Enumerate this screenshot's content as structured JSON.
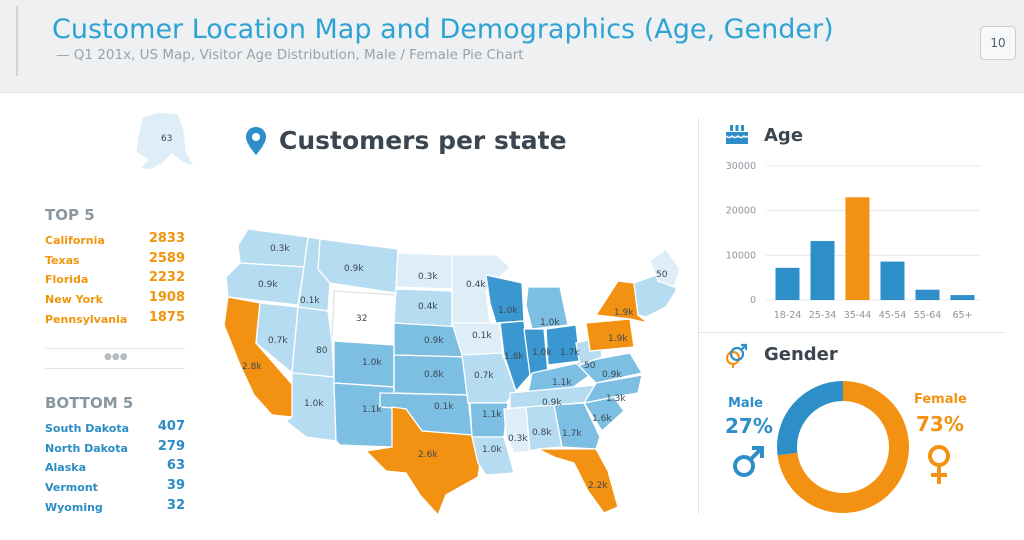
{
  "header": {
    "title": "Customer Location Map and Demographics (Age, Gender)",
    "subtitle": "— Q1 201x, US Map, Visitor Age Distribution, Male / Female Pie Chart",
    "page_number": "10"
  },
  "map": {
    "title": "Customers per state",
    "icon": "map-pin-icon",
    "alaska_value": "63",
    "state_labels": [
      "0.3k",
      "0.9k",
      "0.9k",
      "0.1k",
      "0.3k",
      "0.4k",
      "50",
      "0.4k",
      "32",
      "1.0k",
      "1.0k",
      "1.9k",
      "0.7k",
      "80",
      "1.0k",
      "0.9k",
      "0.1k",
      "1.8k",
      "1.0k",
      "1.7k",
      "1.9k",
      "2.8k",
      "0.8k",
      "0.7k",
      "50",
      "0.9k",
      "1.1k",
      "1.0k",
      "1.1k",
      "0.1k",
      "0.9k",
      "1.3k",
      "1.1k",
      "1.6k",
      "0.8k",
      "1.7k",
      "1.0k",
      "0.3k",
      "2.6k",
      "2.2k"
    ],
    "colors": {
      "top": "#f39212",
      "dark": "#3a97cf",
      "mid": "#7dbfe3",
      "light": "#b5dcf1",
      "pale": "#ddeef8"
    }
  },
  "top5": {
    "heading": "TOP 5",
    "items": [
      {
        "name": "California",
        "value": "2833"
      },
      {
        "name": "Texas",
        "value": "2589"
      },
      {
        "name": "Florida",
        "value": "2232"
      },
      {
        "name": "New York",
        "value": "1908"
      },
      {
        "name": "Pennsylvania",
        "value": "1875"
      }
    ]
  },
  "bottom5": {
    "heading": "BOTTOM 5",
    "items": [
      {
        "name": "South Dakota",
        "value": "407"
      },
      {
        "name": "North Dakota",
        "value": "279"
      },
      {
        "name": "Alaska",
        "value": "63"
      },
      {
        "name": "Vermont",
        "value": "39"
      },
      {
        "name": "Wyoming",
        "value": "32"
      }
    ]
  },
  "age": {
    "title": "Age",
    "icon": "birthday-cake-icon"
  },
  "gender": {
    "title": "Gender",
    "icon": "gender-icon",
    "male_label": "Male",
    "male_pct": "27%",
    "female_label": "Female",
    "female_pct": "73%"
  },
  "chart_data": [
    {
      "type": "bar",
      "title": "Age",
      "categories": [
        "18-24",
        "25-34",
        "35-44",
        "45-54",
        "55-64",
        "65+"
      ],
      "values": [
        7200,
        13200,
        23000,
        8600,
        2300,
        1100
      ],
      "highlight": "35-44",
      "yticks": [
        0,
        10000,
        20000,
        30000
      ],
      "ylim": [
        0,
        30000
      ],
      "grid": true,
      "colors": {
        "bar": "#2e8fc8",
        "highlight": "#f39212"
      }
    },
    {
      "type": "pie",
      "title": "Gender",
      "labels": [
        "Male",
        "Female"
      ],
      "values": [
        27,
        73
      ],
      "colors": [
        "#2e8fc8",
        "#f39212"
      ],
      "donut": true
    }
  ]
}
